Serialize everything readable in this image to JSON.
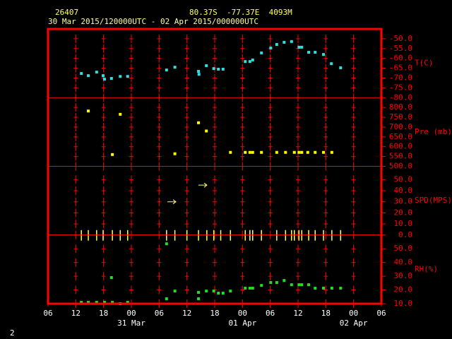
{
  "chart_data": {
    "type": "multi-panel",
    "header": {
      "station": "26407",
      "location": "80.37S  -77.37E  4093M",
      "period": "30 Mar 2015/120000UTC - 02 Apr 2015/000000UTC"
    },
    "footer": "2",
    "frame_color": "#ff0000",
    "xlim": [
      6,
      78
    ],
    "xticks": [
      {
        "value": 6,
        "label": "06"
      },
      {
        "value": 12,
        "label": "12"
      },
      {
        "value": 18,
        "label": "18"
      },
      {
        "value": 24,
        "label": "00"
      },
      {
        "value": 30,
        "label": "06"
      },
      {
        "value": 36,
        "label": "12"
      },
      {
        "value": 42,
        "label": "18"
      },
      {
        "value": 48,
        "label": "00"
      },
      {
        "value": 54,
        "label": "06"
      },
      {
        "value": 60,
        "label": "12"
      },
      {
        "value": 66,
        "label": "18"
      },
      {
        "value": 72,
        "label": "00"
      },
      {
        "value": 78,
        "label": "06"
      }
    ],
    "date_labels": [
      {
        "value": 24,
        "label": "31 Mar"
      },
      {
        "value": 48,
        "label": "01 Apr"
      },
      {
        "value": 72,
        "label": "02 Apr"
      }
    ],
    "panels": [
      {
        "type": "scatter",
        "label": "T(C)",
        "ylim": [
          -80,
          -45
        ],
        "yticks": [
          {
            "value": -50,
            "label": "-50.0"
          },
          {
            "value": -55,
            "label": "-55.0"
          },
          {
            "value": -60,
            "label": "-60.0"
          },
          {
            "value": -65,
            "label": "-65.0"
          },
          {
            "value": -70,
            "label": "-70.0"
          },
          {
            "value": -75,
            "label": "-75.0"
          },
          {
            "value": -80,
            "label": "-80.0"
          }
        ],
        "series": [
          {
            "color": "#33dddd",
            "x": [
              13.2,
              14.7,
              16.5,
              17.9,
              18.2,
              19.7,
              21.6,
              23.2,
              31.6,
              33.4,
              38.5,
              38.6,
              40.2,
              41.8,
              42.8,
              43.8,
              48.6,
              49.6,
              50.2,
              52.1,
              54.1,
              55.4,
              57.0,
              58.6,
              60.2,
              60.8,
              62.3,
              63.7,
              65.5,
              67.2,
              69.2
            ],
            "values": [
              -67.7,
              -68.8,
              -67.0,
              -68.8,
              -70.6,
              -70.2,
              -69.2,
              -69.2,
              -65.9,
              -64.5,
              -66.6,
              -68.1,
              -63.7,
              -65.2,
              -65.5,
              -65.5,
              -61.6,
              -61.6,
              -60.8,
              -57.2,
              -54.7,
              -52.9,
              -51.8,
              -51.4,
              -54.3,
              -54.3,
              -56.9,
              -56.9,
              -58.0,
              -62.7,
              -64.8
            ]
          }
        ]
      },
      {
        "type": "scatter",
        "label": "Pre (mb)",
        "ylim": [
          500,
          850
        ],
        "yticks": [
          {
            "value": 800,
            "label": "800.0"
          },
          {
            "value": 750,
            "label": "750.0"
          },
          {
            "value": 700,
            "label": "700.0"
          },
          {
            "value": 650,
            "label": "650.0"
          },
          {
            "value": 600,
            "label": "600.0"
          },
          {
            "value": 550,
            "label": "550.0"
          },
          {
            "value": 500,
            "label": "500.0"
          }
        ],
        "series": [
          {
            "color": "#ffff00",
            "x": [
              14.7,
              21.6,
              19.9,
              33.4,
              38.5,
              40.2,
              45.4,
              48.6,
              49.6,
              50.2,
              52.1,
              55.4,
              57.3,
              59.2,
              60.2,
              60.8,
              62.1,
              63.7,
              65.5,
              67.3
            ],
            "values": [
              782,
              765,
              560,
              564,
              722,
              680,
              571,
              571,
              571,
              571,
              571,
              571,
              571,
              571,
              571,
              571,
              571,
              571,
              571,
              571
            ]
          }
        ]
      },
      {
        "type": "wind",
        "label": "SPD(MPS)",
        "ylim": [
          0,
          62
        ],
        "yticks": [
          {
            "value": 50,
            "label": "50.0"
          },
          {
            "value": 40,
            "label": "40.0"
          },
          {
            "value": 30,
            "label": "30.0"
          },
          {
            "value": 20,
            "label": "20.0"
          },
          {
            "value": 10,
            "label": "10.0"
          },
          {
            "value": 0,
            "label": "0.0"
          }
        ],
        "series": [
          {
            "color": "#ffff66",
            "x": [
              13.2,
              14.7,
              16.5,
              17.9,
              19.9,
              21.6,
              23.2,
              31.6,
              32.7,
              33.4,
              36.0,
              38.5,
              39.4,
              40.3,
              41.8,
              43.3,
              45.4,
              48.6,
              49.6,
              50.2,
              52.1,
              55.4,
              57.3,
              58.6,
              59.2,
              60.2,
              60.8,
              62.3,
              63.7,
              65.5,
              67.3,
              69.2
            ],
            "values": [
              0,
              0,
              0,
              0,
              0,
              0,
              0,
              0,
              30,
              0,
              0,
              0,
              45,
              0,
              0,
              0,
              0,
              0,
              0,
              0,
              0,
              0,
              0,
              0,
              0,
              0,
              0,
              0,
              0,
              0,
              0,
              0
            ]
          }
        ]
      },
      {
        "type": "scatter",
        "label": "RH(%)",
        "ylim": [
          10,
          60
        ],
        "yticks": [
          {
            "value": 50,
            "label": "50.0"
          },
          {
            "value": 40,
            "label": "40.0"
          },
          {
            "value": 30,
            "label": "30.0"
          },
          {
            "value": 20,
            "label": "20.0"
          },
          {
            "value": 10,
            "label": "10.0"
          }
        ],
        "series": [
          {
            "color": "#22dd22",
            "x": [
              13.2,
              14.7,
              16.5,
              18.2,
              19.9,
              21.6,
              23.2,
              31.6,
              19.7,
              31.6,
              33.4,
              38.5,
              38.5,
              40.2,
              41.8,
              42.8,
              43.8,
              45.4,
              48.6,
              49.6,
              50.2,
              52.1,
              54.1,
              55.4,
              57.0,
              58.6,
              60.2,
              60.8,
              62.3,
              63.7,
              65.5,
              67.3,
              69.2
            ],
            "values": [
              11.0,
              11.0,
              11.0,
              11.0,
              11.0,
              10.0,
              11.0,
              13.6,
              29.0,
              53.6,
              19.2,
              13.6,
              18.2,
              19.2,
              19.2,
              17.7,
              17.7,
              19.2,
              21.3,
              21.3,
              21.3,
              23.3,
              25.4,
              25.4,
              26.9,
              23.8,
              23.8,
              23.8,
              23.8,
              21.3,
              21.3,
              21.3,
              21.3
            ]
          }
        ]
      }
    ]
  }
}
